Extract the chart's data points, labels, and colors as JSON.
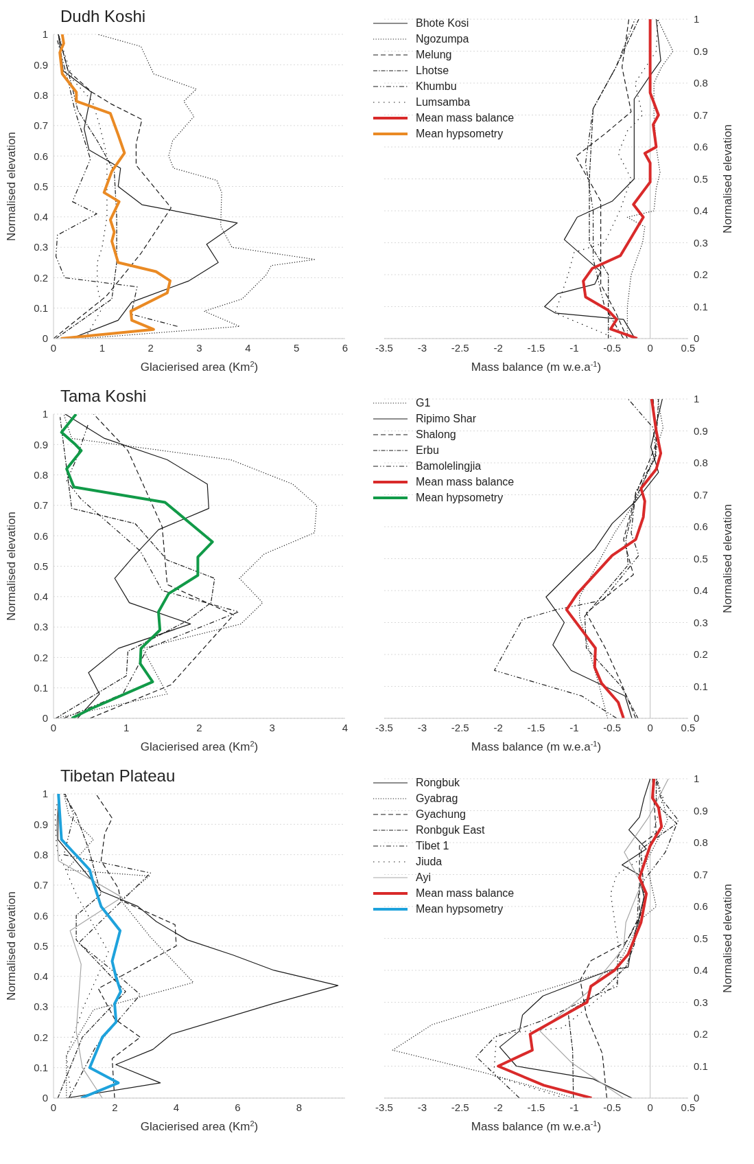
{
  "chart_data": [
    {
      "type": "line",
      "title": "Dudh Koshi",
      "xlabel": "Glacierised area (Km$^{2}$)",
      "ylabel": "Normalised elevation",
      "xlim": [
        0,
        6
      ],
      "xticks": [
        0,
        1,
        2,
        3,
        4,
        5,
        6
      ],
      "ylim": [
        0,
        1
      ],
      "yticks": [
        0,
        0.1,
        0.2,
        0.3,
        0.4,
        0.5,
        0.6,
        0.7,
        0.8,
        0.9,
        1
      ],
      "grid": "y",
      "series": [
        {
          "color": "#1a1a1a",
          "line_style": "solid",
          "x": [
            0.36,
            1.33,
            1.61,
            2.79,
            3.39,
            3.15,
            3.78,
            1.82,
            1.33,
            1.38,
            0.73,
            0.63,
            0.78,
            0.2,
            0.1
          ],
          "values": [
            0,
            0.06,
            0.12,
            0.19,
            0.25,
            0.31,
            0.38,
            0.44,
            0.5,
            0.56,
            0.62,
            0.69,
            0.81,
            0.88,
            1
          ]
        },
        {
          "color": "#1a1a1a",
          "line_style": "dotted",
          "x": [
            0.6,
            3.83,
            3.1,
            3.88,
            4.38,
            4.48,
            5.39,
            3.67,
            3.44,
            3.46,
            3.36,
            2.47,
            2.37,
            2.45,
            2.89,
            2.68,
            2.94,
            2.06,
            1.8,
            0.91
          ],
          "values": [
            0,
            0.04,
            0.09,
            0.13,
            0.21,
            0.24,
            0.26,
            0.3,
            0.37,
            0.48,
            0.52,
            0.56,
            0.6,
            0.65,
            0.73,
            0.78,
            0.82,
            0.87,
            0.96,
            1
          ]
        },
        {
          "color": "#1a1a1a",
          "line_style": "dashed",
          "x": [
            0,
            1.09,
            1.8,
            2.42,
            1.7,
            1.7,
            1.82,
            1.2,
            0.79,
            0.3,
            0.1
          ],
          "values": [
            0,
            0.14,
            0.28,
            0.43,
            0.57,
            0.64,
            0.72,
            0.77,
            0.81,
            0.88,
            1
          ]
        },
        {
          "color": "#1a1a1a",
          "line_style": "dashdot",
          "x": [
            0.05,
            1.2,
            1.3,
            1.3,
            1.25,
            0.9,
            0.5,
            0.3,
            0.1
          ],
          "values": [
            0,
            0.13,
            0.25,
            0.4,
            0.55,
            0.65,
            0.75,
            0.88,
            1
          ]
        },
        {
          "color": "#1a1a1a",
          "line_style": "dashdotdot",
          "x": [
            2.55,
            1.6,
            1.72,
            0.23,
            0.05,
            0.08,
            0.89,
            0.39,
            0.76,
            0.44,
            0.31,
            0.08
          ],
          "values": [
            0.04,
            0.08,
            0.17,
            0.2,
            0.27,
            0.34,
            0.41,
            0.45,
            0.59,
            0.75,
            0.84,
            0.98
          ]
        },
        {
          "color": "#1a1a1a",
          "line_style": "sparse_dotted",
          "x": [
            0.65,
            1.0,
            0.9,
            0.9,
            1.0,
            1.1,
            1.1,
            1.1,
            0.95,
            0.8,
            0.4,
            0.1
          ],
          "values": [
            0,
            0.1,
            0.17,
            0.25,
            0.3,
            0.4,
            0.5,
            0.6,
            0.7,
            0.78,
            0.85,
            1
          ]
        },
        {
          "name": "Mean hypsometry",
          "color": "#ea8a24",
          "line_style": "solid",
          "x": [
            0.15,
            2.06,
            1.61,
            1.59,
            2.34,
            2.4,
            2.11,
            1.33,
            1.2,
            1.25,
            1.17,
            1.35,
            1.04,
            1.2,
            1.46,
            1.33,
            1.17,
            0.47,
            0.47,
            0.18,
            0.13,
            0.21,
            0.18
          ],
          "values": [
            0,
            0.03,
            0.06,
            0.09,
            0.15,
            0.19,
            0.22,
            0.25,
            0.32,
            0.35,
            0.39,
            0.45,
            0.48,
            0.55,
            0.61,
            0.67,
            0.74,
            0.78,
            0.81,
            0.87,
            0.94,
            0.97,
            1
          ]
        }
      ]
    },
    {
      "type": "line",
      "xlabel": "Mass balance (m w.e.a$^{-1}$)",
      "y2label": "Normalised elevation",
      "xlim": [
        -3.5,
        0.5
      ],
      "xticks": [
        -3.5,
        -3,
        -2.5,
        -2,
        -1.5,
        -1,
        -0.5,
        0,
        0.5
      ],
      "y2lim": [
        0,
        1
      ],
      "y2ticks": [
        0,
        0.1,
        0.2,
        0.3,
        0.4,
        0.5,
        0.6,
        0.7,
        0.8,
        0.9,
        1
      ],
      "grid": "y",
      "legend": "top left",
      "ref_lines": [
        {
          "axis": "x",
          "value": 0,
          "color": "#c8c8c8"
        }
      ],
      "series": [
        {
          "name": "Bhote Kosi",
          "axis": "y2",
          "color": "#1a1a1a",
          "line_style": "solid",
          "x": [
            -0.2,
            -0.35,
            -1.25,
            -1.39,
            -1.22,
            -0.73,
            -0.65,
            -1.13,
            -0.96,
            -0.5,
            -0.21,
            -0.21,
            -0.01,
            0.14,
            0.08
          ],
          "values": [
            0,
            0.06,
            0.08,
            0.1,
            0.14,
            0.17,
            0.21,
            0.31,
            0.38,
            0.43,
            0.5,
            0.75,
            0.82,
            0.87,
            1
          ]
        },
        {
          "name": "Ngozumpa",
          "axis": "y2",
          "color": "#1a1a1a",
          "line_style": "dotted",
          "x": [
            -0.3,
            -0.3,
            -0.25,
            -0.1,
            -0.07,
            -0.3,
            0.05,
            0.08,
            0.13,
            0.08,
            0.05,
            0.05,
            0.15,
            0.3,
            0.2,
            0.1
          ],
          "values": [
            0,
            0.1,
            0.2,
            0.3,
            0.35,
            0.38,
            0.4,
            0.47,
            0.52,
            0.6,
            0.7,
            0.8,
            0.85,
            0.9,
            0.95,
            1
          ]
        },
        {
          "name": "Melung",
          "axis": "y2",
          "color": "#1a1a1a",
          "line_style": "dashed",
          "x": [
            -0.3,
            -0.45,
            -0.65,
            -0.65,
            -0.98,
            -0.6,
            -0.25,
            -0.37,
            -0.28
          ],
          "values": [
            0,
            0.08,
            0.17,
            0.43,
            0.57,
            0.64,
            0.71,
            0.85,
            1
          ]
        },
        {
          "name": "Lhotse",
          "axis": "y2",
          "color": "#1a1a1a",
          "line_style": "dashdot",
          "x": [
            -0.55,
            -0.55,
            -0.8,
            -0.8,
            -0.75,
            -0.45,
            -0.15
          ],
          "values": [
            0,
            0.2,
            0.3,
            0.5,
            0.72,
            0.85,
            1
          ]
        },
        {
          "name": "Khumbu",
          "axis": "y2",
          "color": "#1a1a1a",
          "line_style": "dashdotdot",
          "x": [
            -0.35,
            -0.6,
            -0.75,
            -0.75,
            -0.85,
            -0.75,
            -0.45,
            -0.2
          ],
          "values": [
            0,
            0.1,
            0.25,
            0.4,
            0.55,
            0.72,
            0.85,
            1
          ]
        },
        {
          "name": "Lumsamba",
          "axis": "y2",
          "color": "#1a1a1a",
          "line_style": "sparse_dotted",
          "x": [
            -0.45,
            -1.25,
            -1.08,
            -1.0,
            -0.6,
            -0.4,
            -0.25,
            -0.42,
            -0.3,
            -0.1,
            -0.2,
            0.08,
            0.1
          ],
          "values": [
            0,
            0.08,
            0.2,
            0.27,
            0.3,
            0.4,
            0.5,
            0.58,
            0.65,
            0.7,
            0.8,
            0.9,
            1
          ]
        },
        {
          "name": "Mean mass balance",
          "axis": "y2",
          "color": "#d92a2a",
          "line_style": "solid",
          "x": [
            -0.17,
            -0.52,
            -0.44,
            -0.56,
            -0.85,
            -0.88,
            -0.76,
            -0.39,
            -0.24,
            -0.09,
            -0.22,
            0,
            0,
            -0.07,
            0.08,
            0.04,
            0.11,
            0,
            0
          ],
          "values": [
            0,
            0.03,
            0.06,
            0.09,
            0.13,
            0.18,
            0.22,
            0.26,
            0.32,
            0.38,
            0.42,
            0.49,
            0.55,
            0.58,
            0.6,
            0.67,
            0.7,
            0.77,
            1
          ]
        }
      ]
    },
    {
      "type": "line",
      "title": "Tama Koshi",
      "xlabel": "Glacierised area (Km$^{2}$)",
      "ylabel": "Normalised elevation",
      "xlim": [
        0,
        4
      ],
      "xticks": [
        0,
        1,
        2,
        3,
        4
      ],
      "ylim": [
        0,
        1
      ],
      "yticks": [
        0,
        0.1,
        0.2,
        0.3,
        0.4,
        0.5,
        0.6,
        0.7,
        0.8,
        0.9,
        1
      ],
      "grid": "y",
      "series": [
        {
          "color": "#1a1a1a",
          "line_style": "dotted",
          "x": [
            0.03,
            1.56,
            1.22,
            2.57,
            2.87,
            2.55,
            2.89,
            3.58,
            3.61,
            3.28,
            2.43,
            0.25,
            0.14
          ],
          "values": [
            0,
            0.08,
            0.23,
            0.31,
            0.38,
            0.46,
            0.54,
            0.61,
            0.7,
            0.77,
            0.85,
            0.92,
            1
          ]
        },
        {
          "color": "#1a1a1a",
          "line_style": "solid",
          "x": [
            0.33,
            0.63,
            0.48,
            0.89,
            1.88,
            1.04,
            0.84,
            1.09,
            1.44,
            2.13,
            2.11,
            1.56,
            0.7,
            0.16
          ],
          "values": [
            0,
            0.08,
            0.15,
            0.23,
            0.31,
            0.38,
            0.46,
            0.53,
            0.62,
            0.69,
            0.77,
            0.85,
            0.92,
            1
          ]
        },
        {
          "color": "#1a1a1a",
          "line_style": "dashed",
          "x": [
            0.5,
            1.61,
            2.47,
            1.56,
            1.49,
            1.02,
            0.55
          ],
          "values": [
            0,
            0.11,
            0.34,
            0.44,
            0.63,
            0.88,
            1
          ]
        },
        {
          "color": "#1a1a1a",
          "line_style": "dashdot",
          "x": [
            0.03,
            1.0,
            1.02,
            1.83,
            2.16,
            2.21,
            1.56,
            1.12,
            0.25,
            0.09
          ],
          "values": [
            0,
            0.14,
            0.22,
            0.32,
            0.38,
            0.46,
            0.52,
            0.64,
            0.69,
            0.99
          ]
        },
        {
          "color": "#1a1a1a",
          "line_style": "dashdotdot",
          "x": [
            0.14,
            0.95,
            1.29,
            2.54,
            1.49,
            1.19,
            0.38,
            0.18,
            0.31,
            0.48
          ],
          "values": [
            0,
            0.08,
            0.23,
            0.35,
            0.42,
            0.55,
            0.72,
            0.78,
            0.85,
            0.97
          ]
        },
        {
          "name": "Mean hypsometry",
          "color": "#119a48",
          "line_style": "solid",
          "x": [
            0.25,
            0.5,
            1.36,
            1.19,
            1.2,
            1.46,
            1.44,
            1.58,
            1.98,
            1.98,
            2.18,
            1.53,
            0.28,
            0.18,
            0.38,
            0.3,
            0.11,
            0.31
          ],
          "values": [
            0,
            0.03,
            0.12,
            0.18,
            0.23,
            0.29,
            0.35,
            0.41,
            0.47,
            0.53,
            0.58,
            0.71,
            0.76,
            0.82,
            0.88,
            0.9,
            0.94,
            1
          ]
        }
      ]
    },
    {
      "type": "line",
      "xlabel": "Mass balance (m w.e.a$^{-1}$)",
      "y2label": "Normalised elevation",
      "xlim": [
        -3.5,
        0.5
      ],
      "xticks": [
        -3.5,
        -3,
        -2.5,
        -2,
        -1.5,
        -1,
        -0.5,
        0,
        0.5
      ],
      "y2lim": [
        0,
        1
      ],
      "y2ticks": [
        0,
        0.1,
        0.2,
        0.3,
        0.4,
        0.5,
        0.6,
        0.7,
        0.8,
        0.9,
        1
      ],
      "grid": "y",
      "legend": "top left",
      "ref_lines": [
        {
          "axis": "x",
          "value": 0,
          "color": "#c8c8c8"
        }
      ],
      "series": [
        {
          "name": "G1",
          "axis": "y2",
          "color": "#1a1a1a",
          "line_style": "dotted",
          "x": [
            -0.56,
            -0.68,
            -0.93,
            -0.93,
            -0.47,
            -0.19,
            0.05,
            0.17,
            0.1
          ],
          "values": [
            0,
            0.11,
            0.32,
            0.38,
            0.58,
            0.68,
            0.82,
            0.91,
            1
          ]
        },
        {
          "name": "Ripimo Shar",
          "axis": "y2",
          "color": "#1a1a1a",
          "line_style": "solid",
          "x": [
            -0.24,
            -0.33,
            -1.04,
            -1.28,
            -1.13,
            -1.37,
            -0.73,
            -0.5,
            -0.19,
            0.11,
            0.01,
            0.16
          ],
          "values": [
            0,
            0.07,
            0.15,
            0.23,
            0.3,
            0.38,
            0.53,
            0.61,
            0.68,
            0.77,
            0.85,
            1
          ]
        },
        {
          "name": "Shalong",
          "axis": "y2",
          "color": "#1a1a1a",
          "line_style": "dashed",
          "x": [
            -0.19,
            -0.38,
            -0.59,
            -0.84,
            -0.22,
            -0.35,
            -0.19,
            0.08,
            0.04
          ],
          "values": [
            0,
            0.11,
            0.22,
            0.33,
            0.45,
            0.56,
            0.7,
            0.86,
            1
          ]
        },
        {
          "name": "Erbu",
          "axis": "y2",
          "color": "#1a1a1a",
          "line_style": "dashdot",
          "x": [
            -0.16,
            -0.38,
            -0.84,
            -0.86,
            -0.29,
            -0.32,
            -0.19,
            0.07,
            0.11
          ],
          "values": [
            0,
            0.1,
            0.22,
            0.32,
            0.48,
            0.56,
            0.69,
            0.82,
            1
          ]
        },
        {
          "name": "Bamolelingjia",
          "axis": "y2",
          "color": "#1a1a1a",
          "line_style": "dashdotdot",
          "x": [
            -0.44,
            -0.9,
            -2.05,
            -1.68,
            -1.24,
            -0.62,
            -0.15,
            -0.25,
            -0.19,
            0.08,
            0.04,
            -0.29
          ],
          "values": [
            0,
            0.07,
            0.15,
            0.31,
            0.34,
            0.37,
            0.51,
            0.58,
            0.71,
            0.82,
            0.91,
            1
          ]
        },
        {
          "name": "Mean mass balance",
          "axis": "y2",
          "color": "#d92a2a",
          "line_style": "solid",
          "x": [
            -0.35,
            -0.42,
            -0.64,
            -0.73,
            -0.72,
            -1.1,
            -0.96,
            -0.5,
            -0.19,
            -0.09,
            -0.07,
            -0.12,
            0.08,
            0.14,
            0.08,
            0.02
          ],
          "values": [
            0,
            0.05,
            0.11,
            0.16,
            0.22,
            0.34,
            0.39,
            0.51,
            0.56,
            0.63,
            0.68,
            0.72,
            0.78,
            0.83,
            0.9,
            1
          ]
        }
      ]
    },
    {
      "type": "line",
      "title": "Tibetan Plateau",
      "xlabel": "Glacierised area (Km$^{2}$)",
      "ylabel": "Normalised elevation",
      "xlim": [
        0,
        9.5
      ],
      "xticks": [
        0,
        2,
        4,
        6,
        8
      ],
      "ylim": [
        0,
        1
      ],
      "yticks": [
        0,
        0.1,
        0.2,
        0.3,
        0.4,
        0.5,
        0.6,
        0.7,
        0.8,
        0.9,
        1
      ],
      "grid": "y",
      "series": [
        {
          "color": "#1a1a1a",
          "line_style": "solid",
          "x": [
            0.42,
            3.48,
            2.03,
            3.24,
            3.84,
            7.14,
            9.27,
            7.18,
            5.85,
            4.36,
            3.35,
            2.75,
            1.55,
            0.14,
            0.16
          ],
          "values": [
            0,
            0.05,
            0.11,
            0.16,
            0.21,
            0.31,
            0.37,
            0.42,
            0.47,
            0.52,
            0.58,
            0.63,
            0.68,
            0.85,
            1
          ]
        },
        {
          "color": "#1a1a1a",
          "line_style": "dotted",
          "x": [
            0.42,
            0.42,
            1.3,
            4.56,
            3.15,
            2.19,
            3.12,
            0.42,
            1.3,
            0.5,
            0.34
          ],
          "values": [
            0,
            0.14,
            0.29,
            0.38,
            0.53,
            0.65,
            0.73,
            0.75,
            0.85,
            0.93,
            1
          ]
        },
        {
          "color": "#1a1a1a",
          "line_style": "dashed",
          "x": [
            1.99,
            1.91,
            2.83,
            1.99,
            1.46,
            4.0,
            3.96,
            2.19,
            2.11,
            1.55,
            1.67,
            1.91,
            1.38
          ],
          "values": [
            0,
            0.13,
            0.2,
            0.26,
            0.36,
            0.5,
            0.57,
            0.65,
            0.69,
            0.78,
            0.87,
            0.92,
            1
          ]
        },
        {
          "color": "#1a1a1a",
          "line_style": "dashdot",
          "x": [
            0.14,
            0.94,
            2.35,
            0.74,
            0.74,
            1.55,
            1.14,
            0.74,
            0.34
          ],
          "values": [
            0,
            0.2,
            0.35,
            0.52,
            0.6,
            0.67,
            0.82,
            0.93,
            1
          ]
        },
        {
          "color": "#1a1a1a",
          "line_style": "dashdotdot",
          "x": [
            0.5,
            1.38,
            2.83,
            1.79,
            0.82,
            3.16,
            0.34,
            0.66,
            0.38
          ],
          "values": [
            0,
            0.17,
            0.34,
            0.43,
            0.51,
            0.74,
            0.8,
            0.93,
            1
          ]
        },
        {
          "color": "#1a1a1a",
          "line_style": "sparse_dotted",
          "x": [
            0.58,
            0.42,
            0.98,
            1.79,
            0.74,
            0.1,
            0.05,
            0.2
          ],
          "values": [
            0,
            0.14,
            0.3,
            0.48,
            0.67,
            0.82,
            0.94,
            1
          ]
        },
        {
          "color": "#a6a6a6",
          "line_style": "solid",
          "x": [
            1.59,
            0.94,
            0.74,
            0.9,
            0.54,
            2.23,
            0.16,
            0.1,
            0.16
          ],
          "values": [
            0,
            0.1,
            0.22,
            0.44,
            0.55,
            0.66,
            0.78,
            0.89,
            1
          ]
        },
        {
          "name": "Mean hypsometry",
          "color": "#1ea2dc",
          "line_style": "solid",
          "x": [
            0.9,
            2.11,
            1.18,
            1.59,
            2.04,
            1.99,
            2.19,
            2.03,
            1.91,
            2.17,
            1.55,
            1.26,
            1.18,
            0.26,
            0.16
          ],
          "values": [
            0,
            0.05,
            0.1,
            0.2,
            0.25,
            0.31,
            0.35,
            0.4,
            0.45,
            0.55,
            0.63,
            0.72,
            0.75,
            0.85,
            1
          ]
        }
      ]
    },
    {
      "type": "line",
      "xlabel": "Mass balance (m w.e.a$^{-1}$)",
      "y2label": "Normalised elevation",
      "xlim": [
        -3.5,
        0.5
      ],
      "xticks": [
        -3.5,
        -3,
        -2.5,
        -2,
        -1.5,
        -1,
        -0.5,
        0,
        0.5
      ],
      "y2lim": [
        0,
        1
      ],
      "y2ticks": [
        0,
        0.1,
        0.2,
        0.3,
        0.4,
        0.5,
        0.6,
        0.7,
        0.8,
        0.9,
        1
      ],
      "grid": "y",
      "legend": "top left",
      "ref_lines": [
        {
          "axis": "x",
          "value": 0,
          "color": "#c8c8c8"
        }
      ],
      "series": [
        {
          "name": "Rongbuk",
          "axis": "y2",
          "color": "#1a1a1a",
          "line_style": "solid",
          "x": [
            -0.24,
            -0.75,
            -1.76,
            -1.98,
            -1.72,
            -1.68,
            -1.41,
            -0.54,
            -0.29,
            -0.24,
            -0.14,
            -0.08,
            -0.15,
            -0.37,
            -0.05,
            -0.28,
            -0.14,
            -0.08,
            0
          ],
          "values": [
            0,
            0.06,
            0.1,
            0.16,
            0.21,
            0.26,
            0.32,
            0.4,
            0.41,
            0.48,
            0.57,
            0.63,
            0.7,
            0.73,
            0.78,
            0.84,
            0.88,
            0.94,
            1
          ]
        },
        {
          "name": "Gyabrag",
          "axis": "y2",
          "color": "#1a1a1a",
          "line_style": "dotted",
          "x": [
            -1.0,
            -2.19,
            -3.39,
            -2.87,
            -0.96,
            -0.47,
            -0.35,
            -0.12,
            0.08,
            -0.05,
            0.23,
            0.09
          ],
          "values": [
            0,
            0.08,
            0.15,
            0.23,
            0.37,
            0.4,
            0.45,
            0.56,
            0.6,
            0.74,
            0.87,
            1
          ]
        },
        {
          "name": "Gyachung",
          "axis": "y2",
          "color": "#1a1a1a",
          "line_style": "dashed",
          "x": [
            -0.57,
            -0.63,
            -0.84,
            -0.92,
            -0.78,
            -0.31,
            -0.14,
            -0.14,
            0.08,
            0.03
          ],
          "values": [
            0,
            0.14,
            0.26,
            0.37,
            0.43,
            0.49,
            0.57,
            0.79,
            0.83,
            1
          ]
        },
        {
          "name": "Ronbguk East",
          "axis": "y2",
          "color": "#1a1a1a",
          "line_style": "dashdot",
          "x": [
            -1.01,
            -1.02,
            -1.08,
            -0.66,
            -0.32,
            -0.21,
            -0.08,
            -0.12,
            0.35,
            0.08,
            0.08
          ],
          "values": [
            0,
            0.15,
            0.27,
            0.33,
            0.41,
            0.48,
            0.63,
            0.78,
            0.86,
            0.92,
            1
          ]
        },
        {
          "name": "Tibet 1",
          "axis": "y2",
          "color": "#1a1a1a",
          "line_style": "dashdotdot",
          "x": [
            -1.72,
            -2.29,
            -2.05,
            -1.45,
            -0.74,
            -0.43,
            -0.43,
            -0.17,
            -0.15,
            0.2,
            0.37,
            0.14,
            0.08
          ],
          "values": [
            0,
            0.13,
            0.19,
            0.24,
            0.32,
            0.35,
            0.44,
            0.55,
            0.66,
            0.77,
            0.87,
            0.94,
            1
          ]
        },
        {
          "name": "Jiuda",
          "axis": "y2",
          "color": "#1a1a1a",
          "line_style": "sparse_dotted",
          "x": [
            -1.13,
            -2.06,
            -2.02,
            -1.15,
            -0.44,
            -0.38,
            -0.47,
            -0.52,
            -0.44,
            -0.05,
            0.17,
            0.09
          ],
          "values": [
            0,
            0.07,
            0.2,
            0.22,
            0.36,
            0.42,
            0.56,
            0.64,
            0.7,
            0.76,
            0.94,
            1
          ]
        },
        {
          "name": "Ayi",
          "axis": "y2",
          "color": "#a6a6a6",
          "line_style": "solid",
          "x": [
            -0.35,
            -1.03,
            -1.45,
            -0.83,
            -0.35,
            -0.32,
            -0.17,
            -0.11,
            -0.34,
            -0.02,
            0.24
          ],
          "values": [
            0,
            0.11,
            0.21,
            0.33,
            0.47,
            0.55,
            0.64,
            0.67,
            0.77,
            0.88,
            1
          ]
        },
        {
          "name": "Mean mass balance",
          "axis": "y2",
          "color": "#d92a2a",
          "line_style": "solid",
          "x": [
            -0.77,
            -1.4,
            -2.0,
            -1.55,
            -1.58,
            -0.83,
            -0.78,
            -0.47,
            -0.29,
            -0.12,
            -0.05,
            -0.14,
            0,
            0.15,
            0.11,
            0.03,
            0.05
          ],
          "values": [
            0,
            0.04,
            0.1,
            0.15,
            0.2,
            0.3,
            0.35,
            0.4,
            0.45,
            0.55,
            0.64,
            0.69,
            0.79,
            0.85,
            0.91,
            0.94,
            1
          ]
        }
      ]
    }
  ]
}
